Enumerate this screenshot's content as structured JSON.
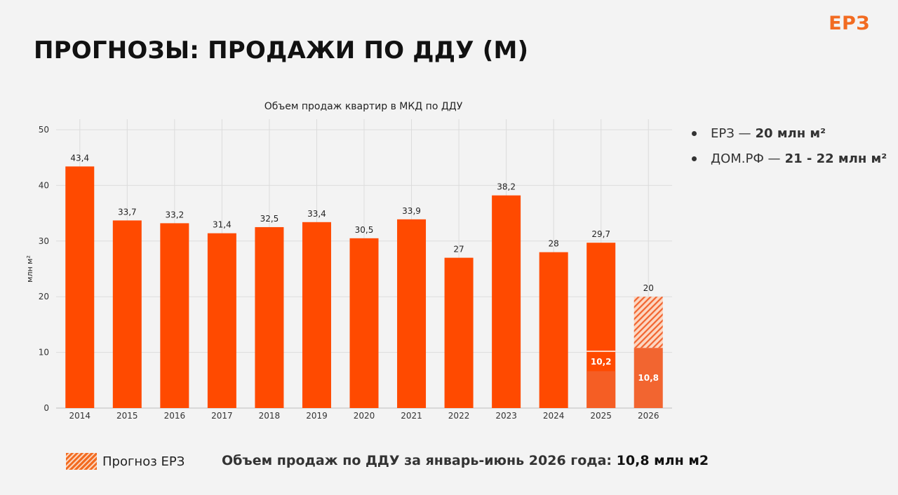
{
  "header": {
    "title": "ПРОГНОЗЫ: ПРОДАЖИ ПО ДДУ (М)",
    "logo_text": "ЕРЗ"
  },
  "colors": {
    "accent": "#ff4a00",
    "forecast_segment": "#f26530",
    "hatch_light": "#fcd7c2",
    "grid": "#dcdcdc"
  },
  "chart_data": {
    "type": "bar",
    "title": "Объем продаж квартир в МКД по ДДУ",
    "xlabel": "",
    "ylabel": "млн м²",
    "ylim": [
      0,
      50
    ],
    "yticks": [
      0,
      10,
      20,
      30,
      40,
      50
    ],
    "grid": true,
    "categories": [
      "2014",
      "2015",
      "2016",
      "2017",
      "2018",
      "2019",
      "2020",
      "2021",
      "2022",
      "2023",
      "2024",
      "2025",
      "2026"
    ],
    "values": [
      43.4,
      33.7,
      33.2,
      31.4,
      32.5,
      33.4,
      30.5,
      33.9,
      27,
      38.2,
      28,
      29.7,
      20
    ],
    "value_labels": [
      "43,4",
      "33,7",
      "33,2",
      "31,4",
      "32,5",
      "33,4",
      "30,5",
      "33,9",
      "27",
      "38,2",
      "28",
      "29,7",
      "20"
    ],
    "sub_segments": [
      {
        "category": "2025",
        "value": 10.2,
        "label": "10,2"
      },
      {
        "category": "2026",
        "value": 10.8,
        "label": "10,8"
      }
    ],
    "forecast": {
      "category": "2026",
      "from": 10.8,
      "to": 20,
      "legend": "Прогноз ЕРЗ"
    }
  },
  "notes": [
    {
      "label": "ЕРЗ —",
      "value": "20 млн м²"
    },
    {
      "label": "ДОМ.РФ —",
      "value": "21 - 22 млн м²"
    }
  ],
  "footer": {
    "text": "Объем продаж по ДДУ за январь-июнь 2026 года:",
    "value": "10,8 млн м2"
  }
}
